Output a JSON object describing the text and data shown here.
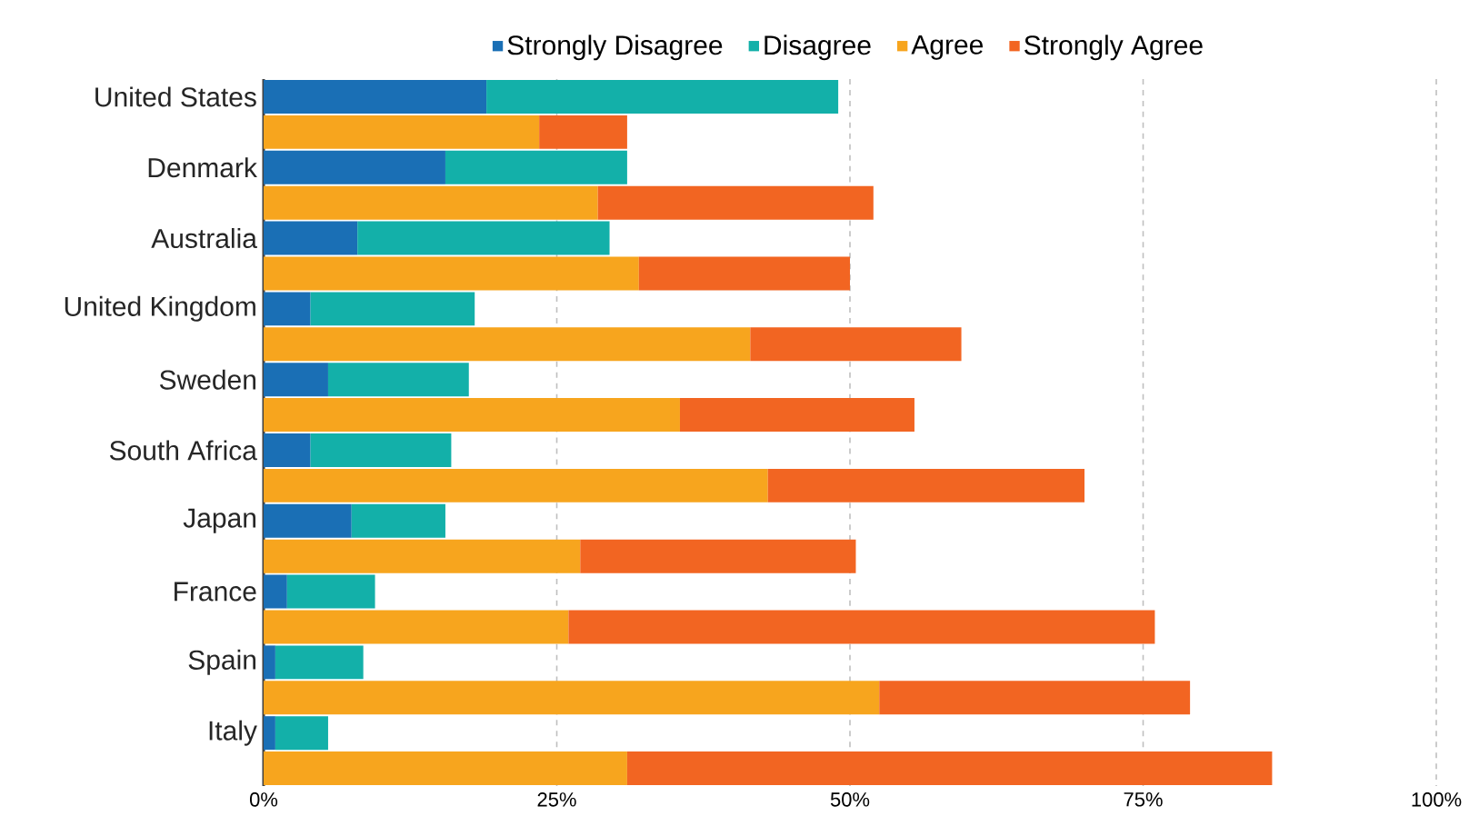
{
  "chart_data": {
    "type": "bar",
    "orientation": "horizontal",
    "stacked": true,
    "categories": [
      "United States",
      null,
      "Denmark",
      null,
      "Australia",
      null,
      "United Kingdom",
      null,
      "Sweden",
      null,
      "South Africa",
      null,
      "Japan",
      null,
      "France",
      null,
      "Spain",
      null,
      "Italy",
      null
    ],
    "series": [
      {
        "name": "Strongly Disagree",
        "color": "#1a6fb5",
        "values": [
          19,
          null,
          15.5,
          null,
          8,
          null,
          4,
          null,
          5.5,
          null,
          4,
          null,
          7.5,
          null,
          2,
          null,
          1,
          null,
          1,
          null
        ]
      },
      {
        "name": "Disagree",
        "color": "#13b0a9",
        "values": [
          30,
          null,
          15.5,
          null,
          21.5,
          null,
          14,
          null,
          12,
          null,
          12,
          null,
          8,
          null,
          7.5,
          null,
          7.5,
          null,
          4.5,
          null
        ]
      },
      {
        "name": "Agree",
        "color": "#f7a51e",
        "values": [
          null,
          23.5,
          null,
          28.5,
          null,
          32,
          null,
          41.5,
          null,
          35.5,
          null,
          43,
          null,
          27,
          null,
          26,
          null,
          52.5,
          null,
          31
        ]
      },
      {
        "name": "Strongly Agree",
        "color": "#f26522",
        "values": [
          null,
          7.5,
          null,
          23.5,
          null,
          18,
          null,
          18,
          null,
          20,
          null,
          27,
          null,
          23.5,
          null,
          50,
          null,
          26.5,
          null,
          55
        ]
      }
    ],
    "xlim": [
      0,
      100
    ],
    "xticks": [
      {
        "value": 0,
        "label": "0%"
      },
      {
        "value": 25,
        "label": "25%"
      },
      {
        "value": 50,
        "label": "50%"
      },
      {
        "value": 75,
        "label": "75%"
      },
      {
        "value": 100,
        "label": "100%"
      }
    ],
    "grid": "x",
    "legend": "top"
  }
}
